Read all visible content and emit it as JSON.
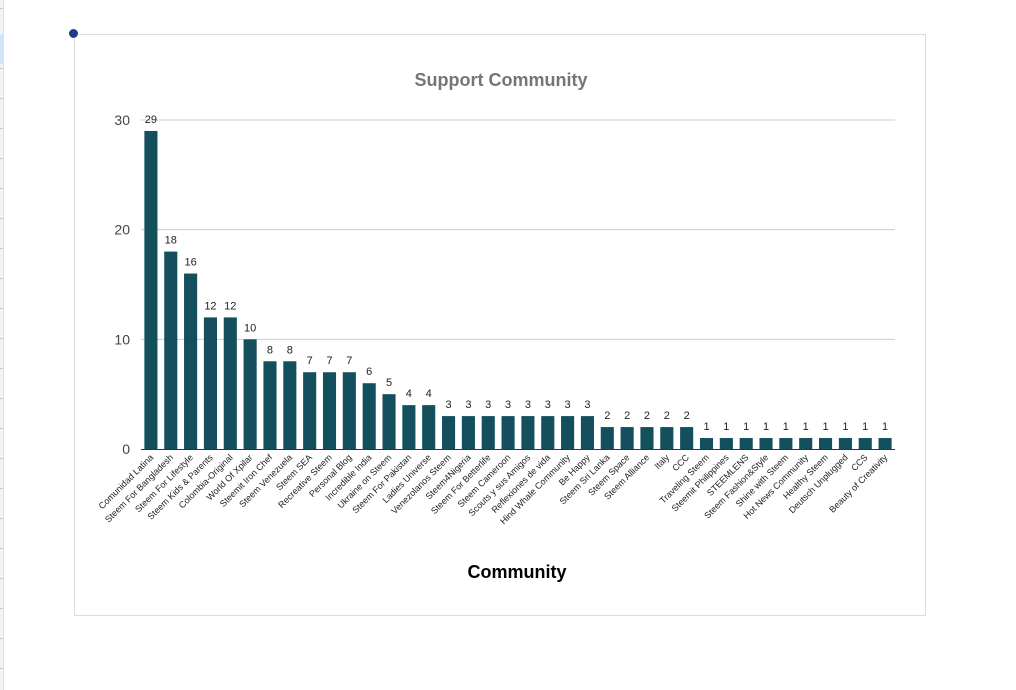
{
  "chart_data": {
    "type": "bar",
    "title": "Support Community",
    "xlabel": "Community",
    "ylabel": "",
    "ylim": [
      0,
      30
    ],
    "yticks": [
      0,
      10,
      20,
      30
    ],
    "grid": true,
    "legend": "none",
    "bar_color": "#134f5c",
    "title_color": "#757575",
    "categories": [
      "Comunidad Latina",
      "Steem For Bangladesh",
      "Steem For Lifestyle",
      "Steem Kids & Parents",
      "Colombia-Original",
      "World Of Xpilar",
      "Steemit Iron Chef",
      "Steem Venezuela",
      "Steem SEA",
      "Recreative Steem",
      "Personal Blog",
      "Incredible India",
      "Ukraine on Steem",
      "Steem For Pakistan",
      "Ladies Universe",
      "Venezolanos Steem",
      "Steem4Nigeria",
      "Steem For Betterlife",
      "Steem Cameroon",
      "Scouts y sus Amigos",
      "Reflexiones de vida",
      "Hind Whale Community",
      "Be Happy",
      "Steem Sri Lanka",
      "Steem Space",
      "Steem Alliance",
      "Italy",
      "CCC",
      "Traveling Steem",
      "Steemit Philippines",
      "STEEMLENS",
      "Steem Fashion&Style",
      "Shine with Steem",
      "Hot News Community",
      "Healthy Steem",
      "Deutsch Unplugged",
      "CCS",
      "Beauty of Creativity"
    ],
    "values": [
      29,
      18,
      16,
      12,
      12,
      10,
      8,
      8,
      7,
      7,
      7,
      6,
      5,
      4,
      4,
      3,
      3,
      3,
      3,
      3,
      3,
      3,
      3,
      2,
      2,
      2,
      2,
      2,
      1,
      1,
      1,
      1,
      1,
      1,
      1,
      1,
      1,
      1
    ]
  }
}
